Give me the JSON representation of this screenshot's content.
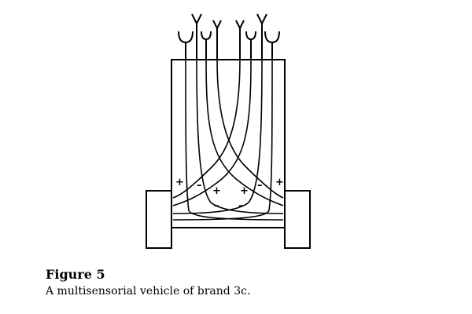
{
  "figure": {
    "title": "Figure 5",
    "caption": "A multisensorial vehicle of brand 3c."
  },
  "diagram": {
    "signs": {
      "left_outer": "+",
      "left_inner": "–",
      "center_left_plus": "+",
      "center_right_plus": "+",
      "center_left_minus": "–",
      "center_right_minus": "–",
      "right_inner": "–",
      "right_outer": "+"
    },
    "sensors": [
      {
        "shape": "U-cup"
      },
      {
        "shape": "Y-fork"
      },
      {
        "shape": "U-cup"
      },
      {
        "shape": "Y-fork"
      },
      {
        "shape": "Y-fork"
      },
      {
        "shape": "U-cup"
      },
      {
        "shape": "Y-fork"
      },
      {
        "shape": "U-cup"
      }
    ]
  }
}
